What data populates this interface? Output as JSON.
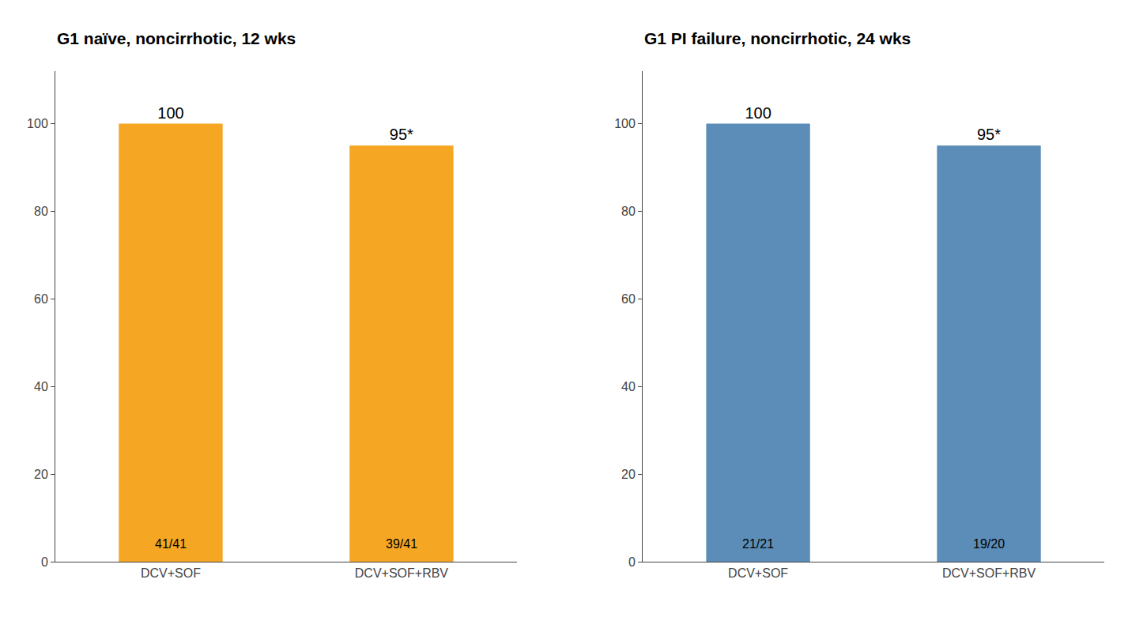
{
  "chart_data": [
    {
      "type": "bar",
      "title": "G1 naïve, noncirrhotic, 12 wks",
      "categories": [
        "DCV+SOF",
        "DCV+SOF+RBV"
      ],
      "values": [
        100,
        95
      ],
      "data_labels": true,
      "value_labels": [
        "100",
        "95*"
      ],
      "annotations": [
        "41/41",
        "39/41"
      ],
      "color": "#F5A623",
      "ylim": [
        0,
        112
      ],
      "yticks": [
        0,
        20,
        40,
        60,
        80,
        100
      ],
      "grid": false
    },
    {
      "type": "bar",
      "title": "G1 PI failure, noncirrhotic, 24 wks",
      "categories": [
        "DCV+SOF",
        "DCV+SOF+RBV"
      ],
      "values": [
        100,
        95
      ],
      "data_labels": true,
      "value_labels": [
        "100",
        "95*"
      ],
      "annotations": [
        "21/21",
        "19/20"
      ],
      "color": "#5B8DB8",
      "ylim": [
        0,
        112
      ],
      "yticks": [
        0,
        20,
        40,
        60,
        80,
        100
      ],
      "grid": false
    }
  ]
}
